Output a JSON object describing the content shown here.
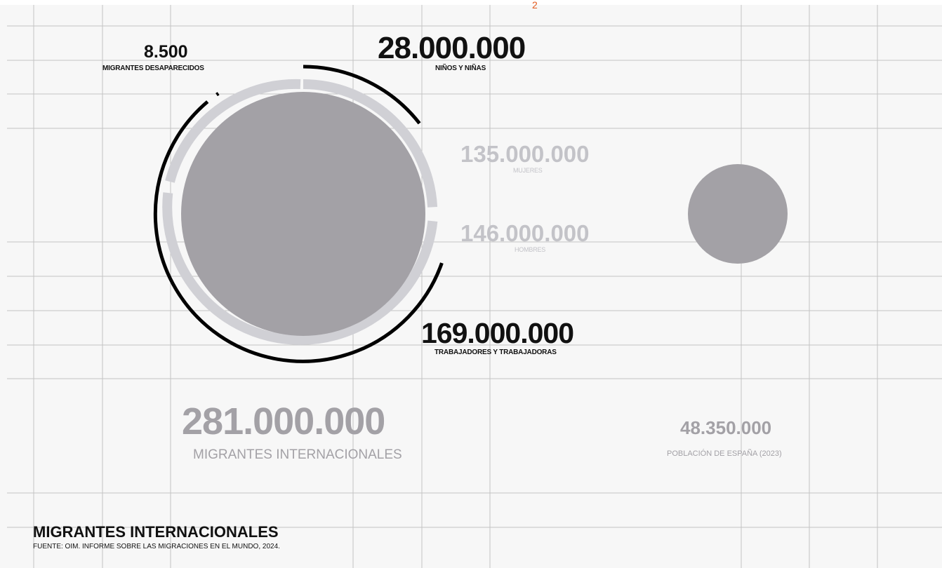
{
  "top_marker": "2",
  "missing": {
    "value": "8.500",
    "label": "MIGRANTES DESAPARECIDOS"
  },
  "children": {
    "value": "28.000.000",
    "label": "NIÑOS Y NIÑAS"
  },
  "women": {
    "value": "135.000.000",
    "label": "MUJERES"
  },
  "men": {
    "value": "146.000.000",
    "label": "HOMBRES"
  },
  "workers": {
    "value": "169.000.000",
    "label": "TRABAJADORES Y TRABAJADORAS"
  },
  "total": {
    "value": "281.000.000",
    "label": "MIGRANTES INTERNACIONALES"
  },
  "spain": {
    "value": "48.350.000",
    "label": "POBLACIÓN DE ESPAÑA (2023)"
  },
  "footer": {
    "title": "MIGRANTES INTERNACIONALES",
    "source": "FUENTE: OIM. INFORME SOBRE LAS MIGRACIONES EN EL MUNDO, 2024."
  },
  "colors": {
    "background": "#f7f7f7",
    "grid": "#9a9a9a",
    "main_circle": "#a3a1a6",
    "gender_ring": "#d0d0d5",
    "black_arcs": "#000000",
    "accent": "#e35a1e"
  }
}
